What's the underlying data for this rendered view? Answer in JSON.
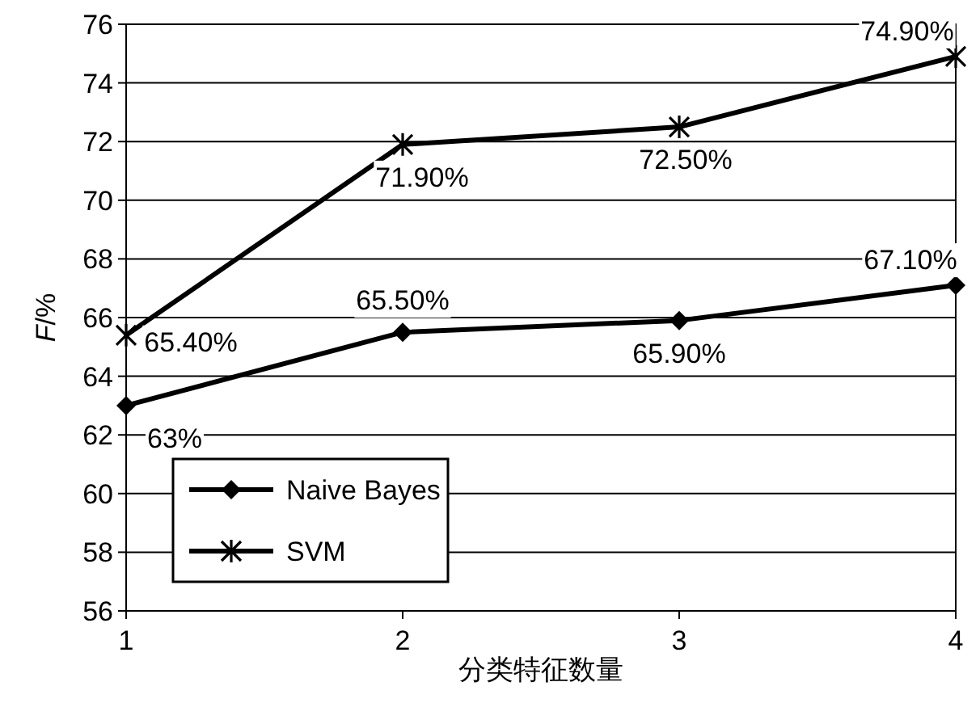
{
  "chart_data": {
    "type": "line",
    "xlabel": "分类特征数量",
    "ylabel": "*F*/%",
    "x": [
      1,
      2,
      3,
      4
    ],
    "xlim": [
      1,
      4
    ],
    "xticks": [
      1,
      2,
      3,
      4
    ],
    "ylim": [
      56,
      76
    ],
    "yticks": [
      56,
      58,
      60,
      62,
      64,
      66,
      68,
      70,
      72,
      74,
      76
    ],
    "grid": "y",
    "legend": "bottom left",
    "line_style": "solid",
    "series": [
      {
        "name": "Naive Bayes",
        "color": "#000000",
        "marker": "diamond",
        "values": [
          63,
          65.5,
          65.9,
          67.1
        ],
        "value_labels": [
          "63%",
          "65.50%",
          "65.90%",
          "67.10%"
        ]
      },
      {
        "name": "SVM",
        "color": "#000000",
        "marker": "cross",
        "values": [
          65.4,
          71.9,
          72.5,
          74.9
        ],
        "value_labels": [
          "65.40%",
          "71.90%",
          "72.50%",
          "74.90%"
        ]
      }
    ]
  }
}
